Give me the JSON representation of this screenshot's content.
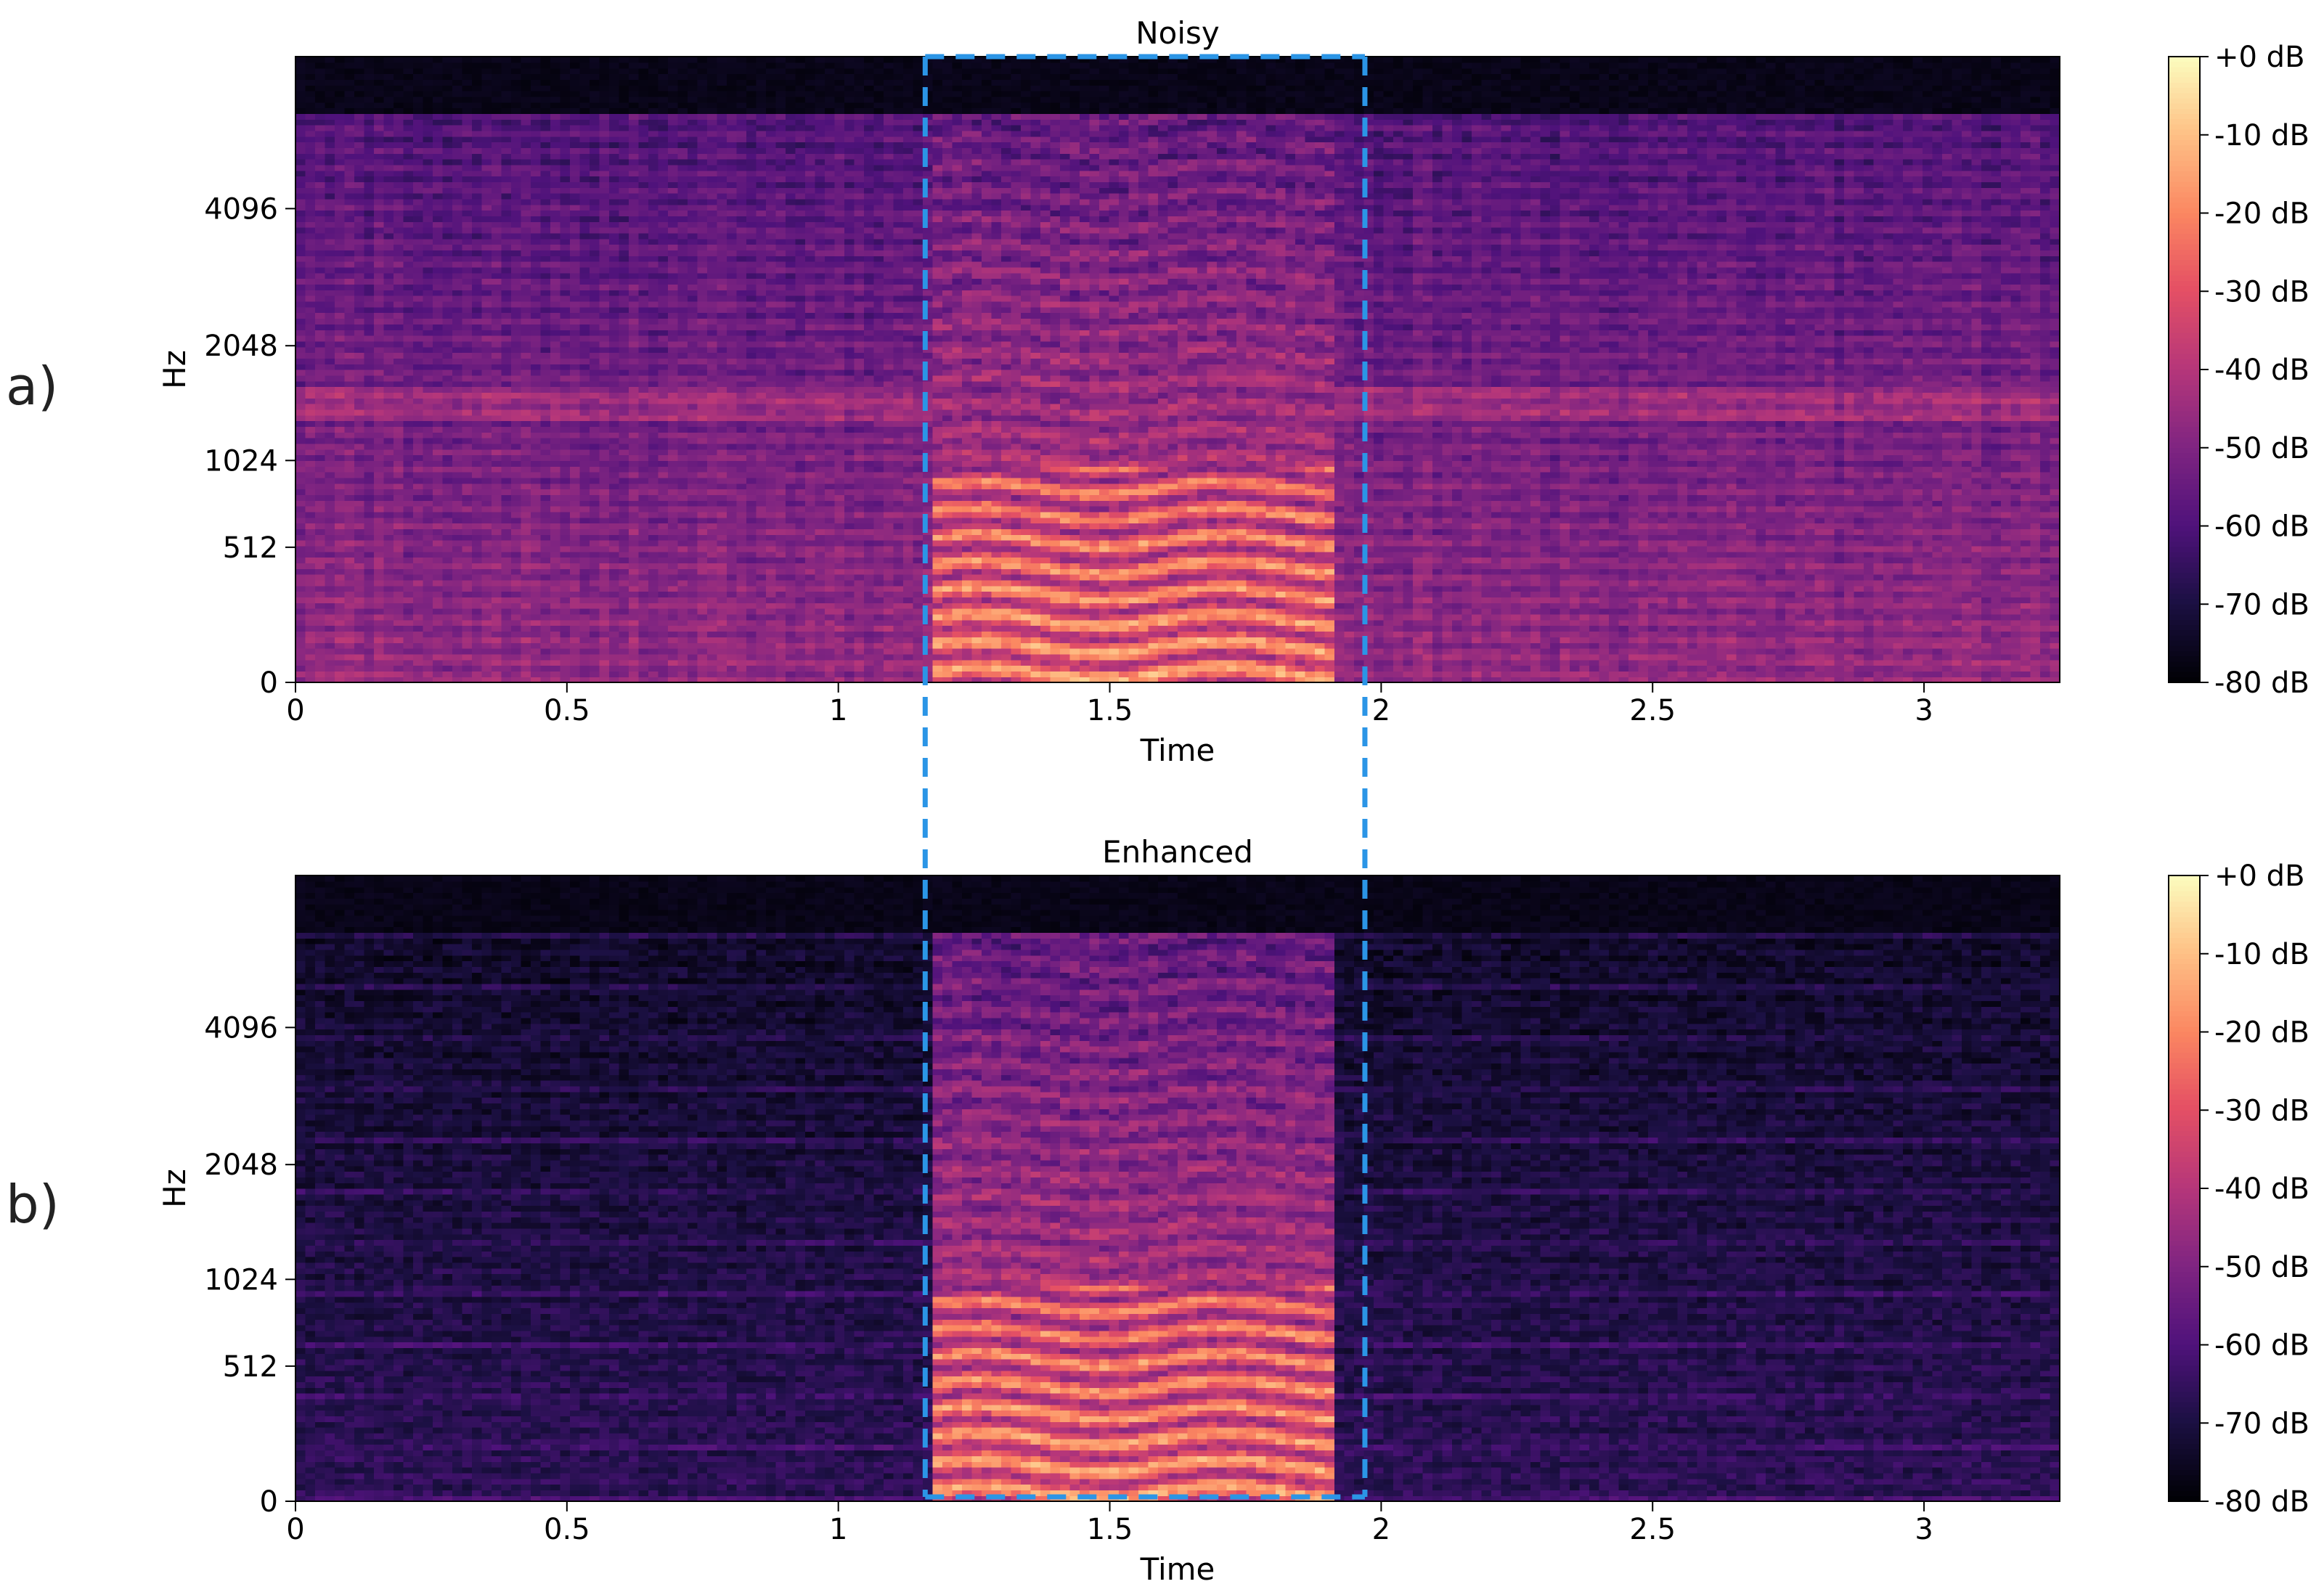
{
  "figure": {
    "panel_labels": [
      "a)",
      "b)"
    ],
    "highlight_color": "#2b95e6"
  },
  "chart_data": [
    {
      "type": "heatmap",
      "title": "Noisy",
      "xlabel": "Time",
      "ylabel": "Hz",
      "xlim": [
        0,
        3.25
      ],
      "x_ticks": [
        0,
        0.5,
        1,
        1.5,
        2,
        2.5,
        3
      ],
      "x_tick_labels": [
        "0",
        "0.5",
        "1",
        "1.5",
        "2",
        "2.5",
        "3"
      ],
      "y_scale": "mel",
      "y_ticks": [
        0,
        512,
        1024,
        2048,
        4096
      ],
      "y_tick_labels": [
        "0",
        "512",
        "1024",
        "2048",
        "4096"
      ],
      "colormap": "magma",
      "colorbar": {
        "range_db": [
          -80,
          0
        ],
        "tick_labels": [
          "+0 dB",
          "-10 dB",
          "-20 dB",
          "-30 dB",
          "-40 dB",
          "-50 dB",
          "-60 dB",
          "-70 dB",
          "-80 dB"
        ]
      },
      "highlight_region": {
        "time_start": 1.16,
        "time_end": 1.97
      }
    },
    {
      "type": "heatmap",
      "title": "Enhanced",
      "xlabel": "Time",
      "ylabel": "Hz",
      "xlim": [
        0,
        3.25
      ],
      "x_ticks": [
        0,
        0.5,
        1,
        1.5,
        2,
        2.5,
        3
      ],
      "x_tick_labels": [
        "0",
        "0.5",
        "1",
        "1.5",
        "2",
        "2.5",
        "3"
      ],
      "y_scale": "mel",
      "y_ticks": [
        0,
        512,
        1024,
        2048,
        4096
      ],
      "y_tick_labels": [
        "0",
        "512",
        "1024",
        "2048",
        "4096"
      ],
      "colormap": "magma",
      "colorbar": {
        "range_db": [
          -80,
          0
        ],
        "tick_labels": [
          "+0 dB",
          "-10 dB",
          "-20 dB",
          "-30 dB",
          "-40 dB",
          "-50 dB",
          "-60 dB",
          "-70 dB",
          "-80 dB"
        ]
      },
      "highlight_region": {
        "time_start": 1.16,
        "time_end": 1.97
      }
    }
  ]
}
